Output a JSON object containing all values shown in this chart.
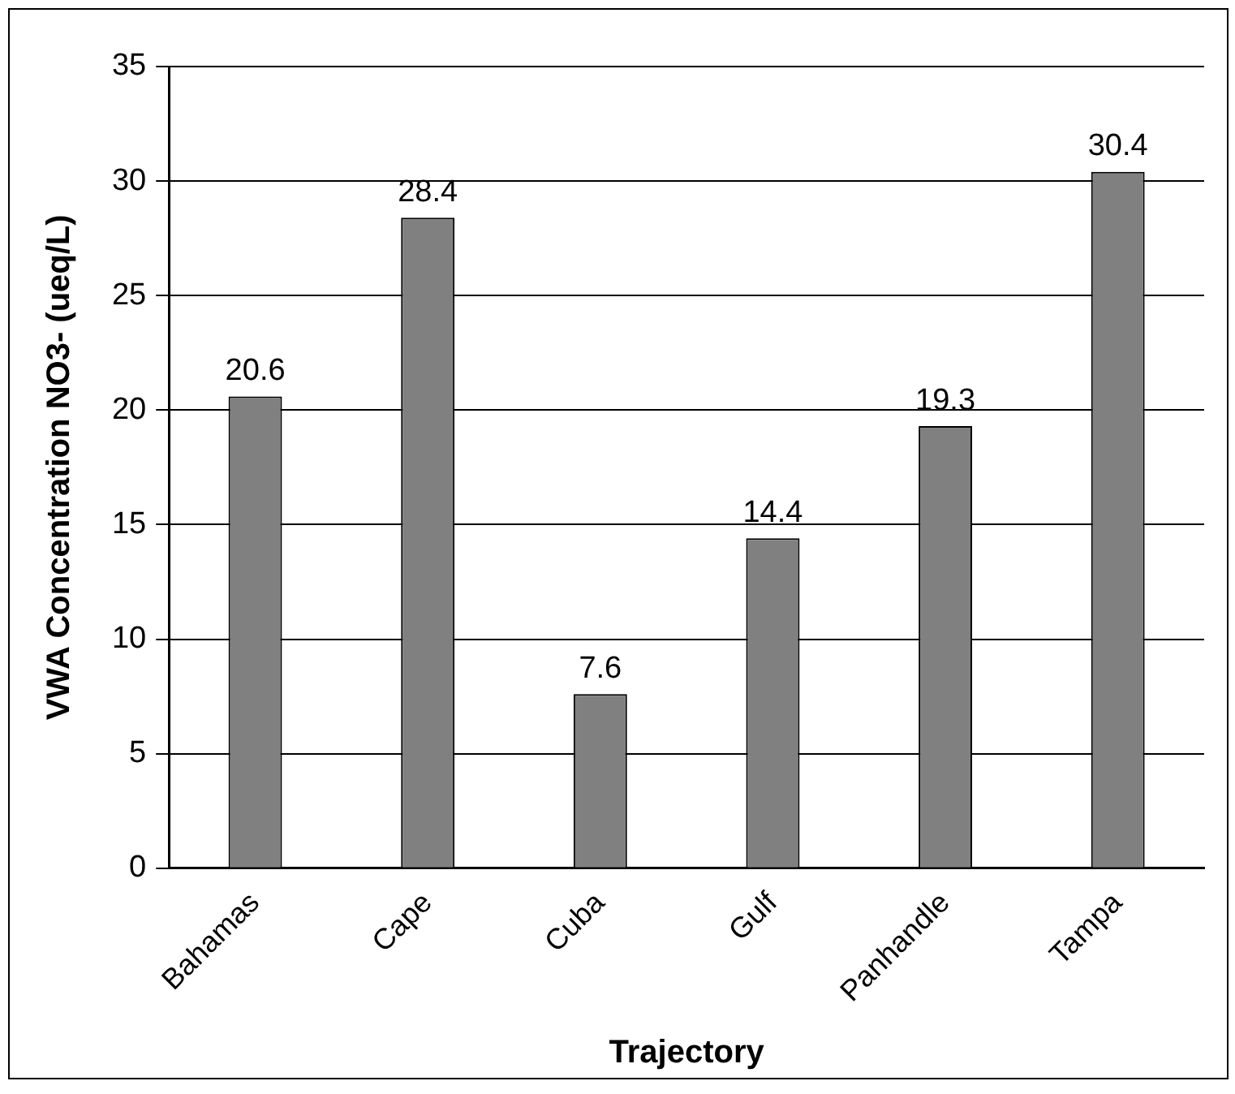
{
  "chart_data": {
    "type": "bar",
    "xlabel": "Trajectory",
    "ylabel": "VWA Concentration NO3- (ueq/L)",
    "categories": [
      "Bahamas",
      "Cape",
      "Cuba",
      "Gulf",
      "Panhandle",
      "Tampa"
    ],
    "values": [
      20.6,
      28.4,
      7.6,
      14.4,
      19.3,
      30.4
    ],
    "color": "#808080",
    "ylim": [
      0,
      35
    ],
    "yticks": [
      0,
      5,
      10,
      15,
      20,
      25,
      30,
      35
    ],
    "grid": "y",
    "data_labels": true,
    "legend": false
  }
}
